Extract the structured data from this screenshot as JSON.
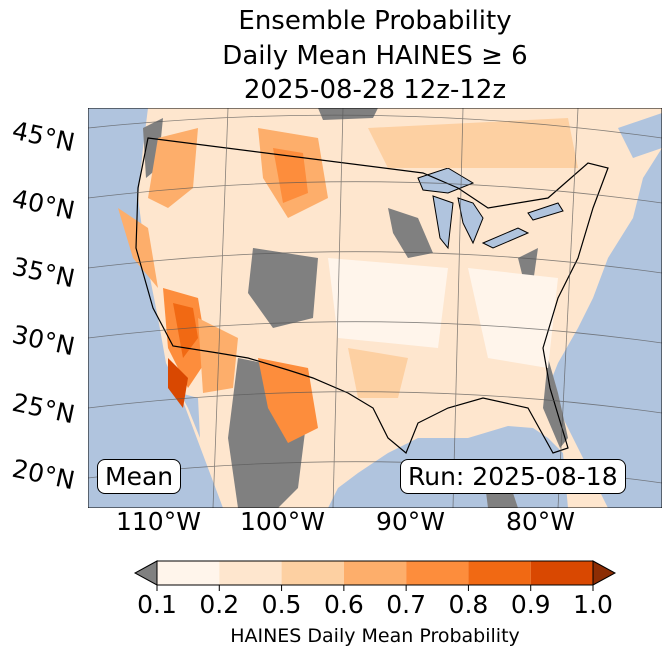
{
  "title": {
    "line1": "Ensemble Probability",
    "line2": "Daily Mean HAINES ≥ 6",
    "line3": "2025-08-28 12z-12z"
  },
  "map": {
    "lat_labels": [
      "45°N",
      "40°N",
      "35°N",
      "30°N",
      "25°N",
      "20°N"
    ],
    "lon_labels": [
      "110°W",
      "100°W",
      "90°W",
      "80°W"
    ],
    "mean_label": "Mean",
    "run_label": "Run: 2025-08-18",
    "colors": {
      "ocean": "#b0c4de",
      "na": "#808080"
    }
  },
  "colorbar": {
    "ticks": [
      "0.1",
      "0.2",
      "0.5",
      "0.6",
      "0.7",
      "0.8",
      "0.9",
      "1.0"
    ],
    "label": "HAINES Daily Mean Probability",
    "colors": [
      "#fff5eb",
      "#fee6ce",
      "#fdd0a2",
      "#fdae6b",
      "#fd8d3c",
      "#f16913",
      "#d94801"
    ],
    "under_color": "#808080",
    "over_color": "#8c2d04"
  }
}
